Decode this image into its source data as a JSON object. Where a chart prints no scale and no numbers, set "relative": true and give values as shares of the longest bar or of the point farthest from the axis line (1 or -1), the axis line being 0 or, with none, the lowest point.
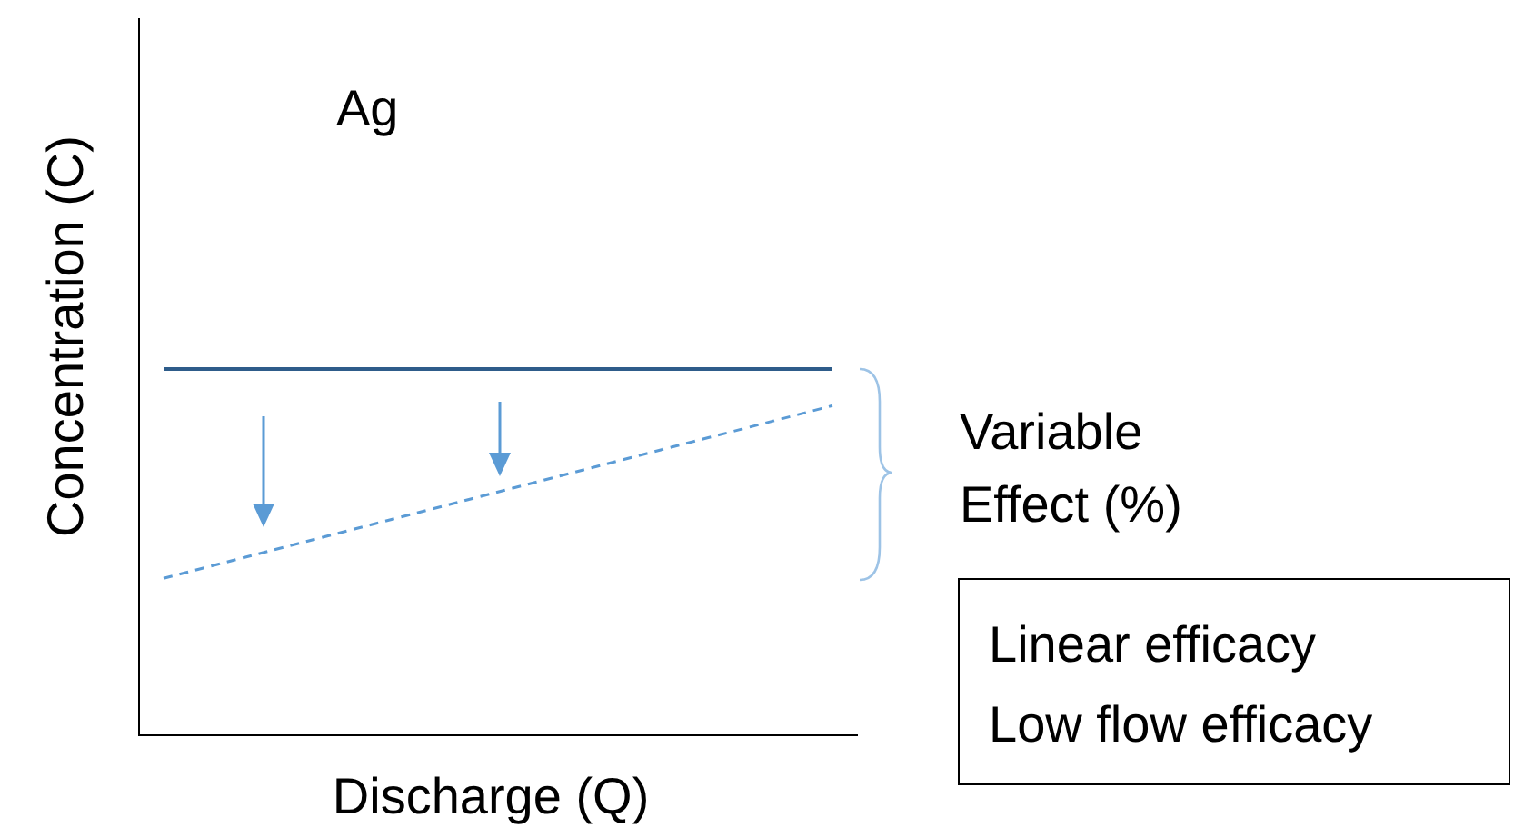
{
  "chart_data": {
    "type": "line",
    "relative": true,
    "xlabel": "Discharge (Q)",
    "ylabel": "Concentration (C)",
    "categories": [
      null,
      null
    ],
    "series": [
      {
        "name": "Linear efficacy",
        "color": "#2e5c8a",
        "values": [
          1,
          1
        ],
        "line_style": "solid"
      },
      {
        "name": "Low flow efficacy",
        "color": "#5b9bd5",
        "values": [
          0.43,
          0.9
        ],
        "line_style": "dashed"
      }
    ],
    "annotations": [
      "Ag",
      "Variable Effect (%)"
    ],
    "legend": "bottom right",
    "marker": "none"
  }
}
